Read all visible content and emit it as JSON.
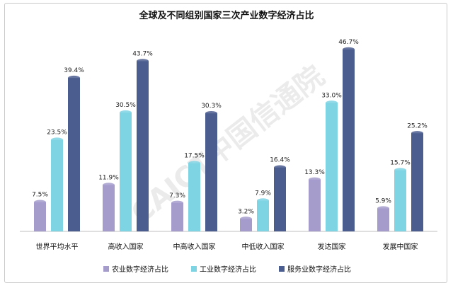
{
  "chart_data": {
    "type": "bar",
    "title": "全球及不同组别国家三次产业数字经济占比",
    "categories": [
      "世界平均水平",
      "高收入国家",
      "中高收入国家",
      "中低收入国家",
      "发达国家",
      "发展中国家"
    ],
    "series": [
      {
        "name": "农业数字经济占比",
        "values": [
          7.5,
          11.9,
          7.3,
          3.2,
          13.3,
          5.9
        ],
        "labels": [
          "7.5%",
          "11.9%",
          "7.3%",
          "3.2%",
          "13.3%",
          "5.9%"
        ],
        "color": "#a59ccc"
      },
      {
        "name": "工业数字经济占比",
        "values": [
          23.5,
          30.5,
          17.5,
          7.9,
          33.0,
          15.7
        ],
        "labels": [
          "23.5%",
          "30.5%",
          "17.5%",
          "7.9%",
          "33.0%",
          "15.7%"
        ],
        "color": "#7fd4e4"
      },
      {
        "name": "服务业数字经济占比",
        "values": [
          39.4,
          43.7,
          30.3,
          16.4,
          46.7,
          25.2
        ],
        "labels": [
          "39.4%",
          "43.7%",
          "30.3%",
          "16.4%",
          "46.7%",
          "25.2%"
        ],
        "color": "#4b5d8f"
      }
    ],
    "ylim": [
      0,
      50
    ],
    "grid": false,
    "legend_position": "bottom",
    "watermark": "CAICT中国信通院"
  }
}
